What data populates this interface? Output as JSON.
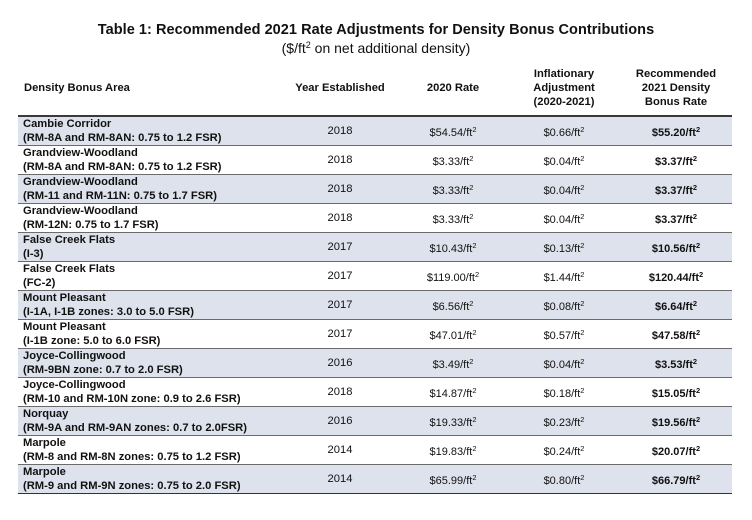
{
  "title": "Table 1: Recommended 2021 Rate Adjustments for Density Bonus Contributions",
  "subtitle_pre": "($/ft",
  "subtitle_sup": "2",
  "subtitle_post": " on net additional density)",
  "unit_suffix": "/ft",
  "unit_sup": "2",
  "headers": {
    "area": "Density Bonus Area",
    "year": "Year Established",
    "rate2020": "2020 Rate",
    "inflation_l1": "Inflationary",
    "inflation_l2": "Adjustment",
    "inflation_l3": "(2020-2021)",
    "recommended_l1": "Recommended",
    "recommended_l2": "2021 Density",
    "recommended_l3": "Bonus Rate"
  },
  "rows": [
    {
      "area_name": "Cambie Corridor",
      "area_detail": "(RM-8A and RM-8AN: 0.75 to 1.2 FSR)",
      "year": "2018",
      "rate2020": "$54.54",
      "inflation": "$0.66",
      "recommended": "$55.20"
    },
    {
      "area_name": "Grandview-Woodland",
      "area_detail": "(RM-8A and RM-8AN: 0.75 to 1.2 FSR)",
      "year": "2018",
      "rate2020": "$3.33",
      "inflation": "$0.04",
      "recommended": "$3.37"
    },
    {
      "area_name": "Grandview-Woodland",
      "area_detail": "(RM-11 and RM-11N: 0.75 to 1.7 FSR)",
      "year": "2018",
      "rate2020": "$3.33",
      "inflation": "$0.04",
      "recommended": "$3.37"
    },
    {
      "area_name": "Grandview-Woodland",
      "area_detail": "(RM-12N: 0.75 to 1.7 FSR)",
      "year": "2018",
      "rate2020": "$3.33",
      "inflation": "$0.04",
      "recommended": "$3.37"
    },
    {
      "area_name": "False Creek Flats",
      "area_detail": "(I-3)",
      "year": "2017",
      "rate2020": "$10.43",
      "inflation": "$0.13",
      "recommended": "$10.56"
    },
    {
      "area_name": "False Creek Flats",
      "area_detail": "(FC-2)",
      "year": "2017",
      "rate2020": "$119.00",
      "inflation": "$1.44",
      "recommended": "$120.44"
    },
    {
      "area_name": "Mount Pleasant",
      "area_detail": "(I-1A, I-1B zones: 3.0 to 5.0 FSR)",
      "year": "2017",
      "rate2020": "$6.56",
      "inflation": "$0.08",
      "recommended": "$6.64"
    },
    {
      "area_name": "Mount Pleasant",
      "area_detail": "(I-1B zone: 5.0 to 6.0 FSR)",
      "year": "2017",
      "rate2020": "$47.01",
      "inflation": "$0.57",
      "recommended": "$47.58"
    },
    {
      "area_name": "Joyce-Collingwood",
      "area_detail": "(RM-9BN zone: 0.7 to 2.0 FSR)",
      "year": "2016",
      "rate2020": "$3.49",
      "inflation": "$0.04",
      "recommended": "$3.53"
    },
    {
      "area_name": "Joyce-Collingwood",
      "area_detail": "(RM-10 and RM-10N zone: 0.9 to 2.6 FSR)",
      "year": "2018",
      "rate2020": "$14.87",
      "inflation": "$0.18",
      "recommended": "$15.05"
    },
    {
      "area_name": "Norquay",
      "area_detail": "(RM-9A and RM-9AN zones: 0.7 to 2.0FSR)",
      "year": "2016",
      "rate2020": "$19.33",
      "inflation": "$0.23",
      "recommended": "$19.56"
    },
    {
      "area_name": "Marpole",
      "area_detail": "(RM-8 and RM-8N zones: 0.75 to 1.2 FSR)",
      "year": "2014",
      "rate2020": "$19.83",
      "inflation": "$0.24",
      "recommended": "$20.07"
    },
    {
      "area_name": "Marpole",
      "area_detail": "(RM-9 and RM-9N zones: 0.75 to 2.0 FSR)",
      "year": "2014",
      "rate2020": "$65.99",
      "inflation": "$0.80",
      "recommended": "$66.79"
    }
  ],
  "colors": {
    "shaded_row": "#dde2ec",
    "plain_row": "#ffffff",
    "header_rule": "#3a3a3a"
  }
}
